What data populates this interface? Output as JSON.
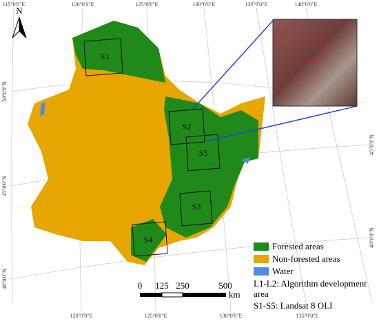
{
  "map": {
    "north_arrow": "N",
    "graticule": {
      "top": [
        "115°0'0\"E",
        "120°0'0\"E",
        "125°0'0\"E",
        "130°0'0\"E",
        "135°0'0\"E",
        "140°0'0\"E"
      ],
      "bottom": [
        "120°0'0\"E",
        "125°0'0\"E",
        "130°0'0\"E",
        "135°0'0\"E"
      ],
      "left": [
        "50°0'0\"N",
        "45°0'0\"N",
        "40°0'0\"N"
      ],
      "right": [
        "45°0'0\"N",
        "40°0'0\"N"
      ]
    },
    "sites": [
      "S1",
      "S2",
      "S5",
      "S3",
      "S4"
    ],
    "inset_sites": [
      "L1",
      "L2"
    ],
    "legend": [
      "Forested areas",
      "Non-forested areas",
      "Water",
      "L1-L2: Algorithm development area",
      "S1-S5: Landsat 8 OLI"
    ],
    "scale": {
      "labels": [
        0,
        125,
        250,
        500
      ],
      "unit": "km"
    }
  }
}
